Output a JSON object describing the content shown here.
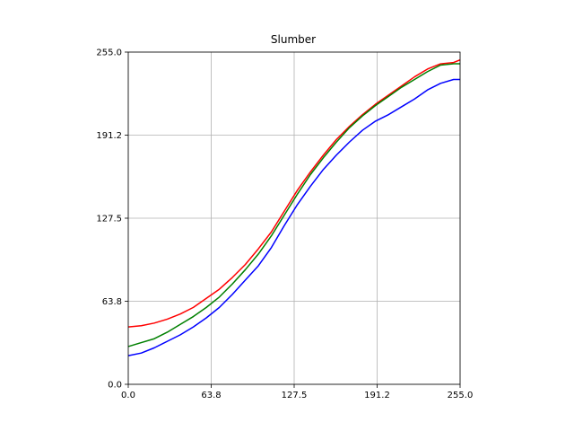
{
  "chart_data": {
    "type": "line",
    "title": "Slumber",
    "xlabel": "",
    "ylabel": "",
    "xlim": [
      0,
      255
    ],
    "ylim": [
      0,
      255
    ],
    "grid": true,
    "xticks": [
      0,
      63.75,
      127.5,
      191.25,
      255
    ],
    "xtick_labels": [
      "0.0",
      "63.8",
      "127.5",
      "191.2",
      "255.0"
    ],
    "yticks": [
      0,
      63.75,
      127.5,
      191.25,
      255
    ],
    "ytick_labels": [
      "0.0",
      "63.8",
      "127.5",
      "191.2",
      "255.0"
    ],
    "series": [
      {
        "color": "#ff0000",
        "x": [
          0,
          10,
          20,
          30,
          40,
          50,
          60,
          70,
          80,
          90,
          100,
          110,
          120,
          130,
          140,
          150,
          160,
          170,
          180,
          190,
          200,
          210,
          220,
          230,
          240,
          250,
          255
        ],
        "y": [
          44,
          45,
          47,
          50,
          54,
          59,
          66,
          73,
          82,
          92,
          104,
          117,
          133,
          149,
          163,
          176,
          188,
          198,
          207,
          215,
          222,
          229,
          236,
          242,
          246,
          247,
          249
        ]
      },
      {
        "color": "#008000",
        "x": [
          0,
          10,
          20,
          30,
          40,
          50,
          60,
          70,
          80,
          90,
          100,
          110,
          120,
          130,
          140,
          150,
          160,
          170,
          180,
          190,
          200,
          210,
          220,
          230,
          240,
          250,
          255
        ],
        "y": [
          29,
          32,
          35,
          40,
          46,
          52,
          59,
          67,
          77,
          88,
          100,
          114,
          130,
          146,
          161,
          174,
          186,
          197,
          206,
          214,
          221,
          228,
          234,
          240,
          245,
          246,
          246
        ]
      },
      {
        "color": "#0000ff",
        "x": [
          0,
          10,
          20,
          30,
          40,
          50,
          60,
          70,
          80,
          90,
          100,
          110,
          120,
          130,
          140,
          150,
          160,
          170,
          180,
          190,
          200,
          210,
          220,
          230,
          240,
          250,
          255
        ],
        "y": [
          22,
          24,
          28,
          33,
          38,
          44,
          51,
          59,
          69,
          80,
          91,
          105,
          122,
          138,
          152,
          165,
          176,
          186,
          195,
          202,
          207,
          213,
          219,
          226,
          231,
          234,
          234
        ]
      }
    ]
  }
}
